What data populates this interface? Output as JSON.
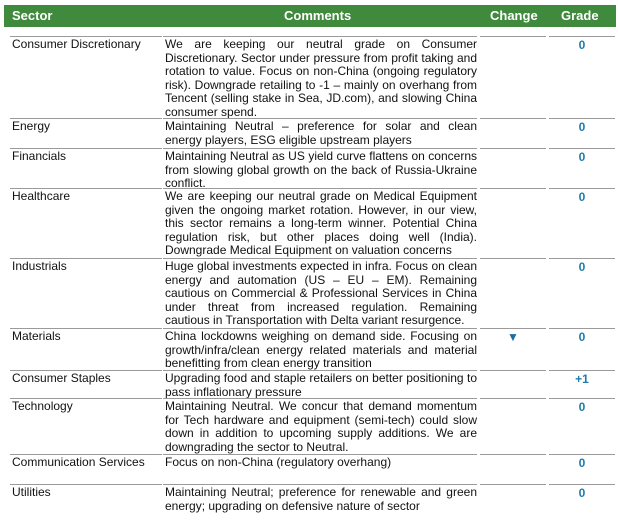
{
  "table": {
    "header": [
      "Sector",
      "Comments",
      "Change",
      "Grade"
    ],
    "rows": [
      {
        "sector": "Consumer Discretionary",
        "comment": "We are keeping our neutral grade on Consumer Discretionary. Sector under pressure from profit taking and rotation to value. Focus on non-China (ongoing regulatory risk). Downgrade retailing to -1 – mainly on overhang from Tencent (selling stake in Sea, JD.com), and slowing China consumer spend.",
        "grade": "0"
      },
      {
        "sector": "Energy",
        "comment": "Maintaining Neutral – preference for solar and clean energy players, ESG eligible upstream players",
        "grade": "0"
      },
      {
        "sector": "Financials",
        "comment": "Maintaining Neutral as US yield curve flattens on concerns from slowing global growth on the back of Russia-Ukraine conflict.",
        "grade": "0"
      },
      {
        "sector": "Healthcare",
        "comment": "We are keeping our neutral grade on Medical Equipment given the ongoing market rotation. However, in our view, this sector remains a long-term winner. Potential China regulation risk, but other places doing well (India). Downgrade Medical Equipment on valuation concerns",
        "grade": "0"
      },
      {
        "sector": "Industrials",
        "comment": "Huge global investments expected in infra. Focus on clean energy and automation (US – EU – EM). Remaining cautious on Commercial & Professional Services in China under threat from increased regulation. Remaining cautious in Transportation with Delta variant resurgence.",
        "grade": "0"
      },
      {
        "sector": "Materials",
        "comment": "China lockdowns weighing on demand side. Focusing on growth/infra/clean energy related materials and material benefitting from clean energy transition",
        "change": "▼",
        "grade": "0"
      },
      {
        "sector": "Consumer Staples",
        "comment": "Upgrading food and staple retailers on better positioning to pass inflationary pressure",
        "grade": "+1"
      },
      {
        "sector": "Technology",
        "comment": "Maintaining Neutral. We concur that demand momentum for Tech hardware and equipment (semi-tech) could slow down in addition to upcoming supply additions. We are downgrading the sector to Neutral.",
        "grade": "0"
      },
      {
        "sector": "Communication Services",
        "comment": "Focus on non-China (regulatory overhang)",
        "grade": "0"
      },
      {
        "sector": "Utilities",
        "comment": "Maintaining Neutral; preference for renewable and green energy; upgrading on defensive nature of sector",
        "grade": "0"
      }
    ]
  }
}
